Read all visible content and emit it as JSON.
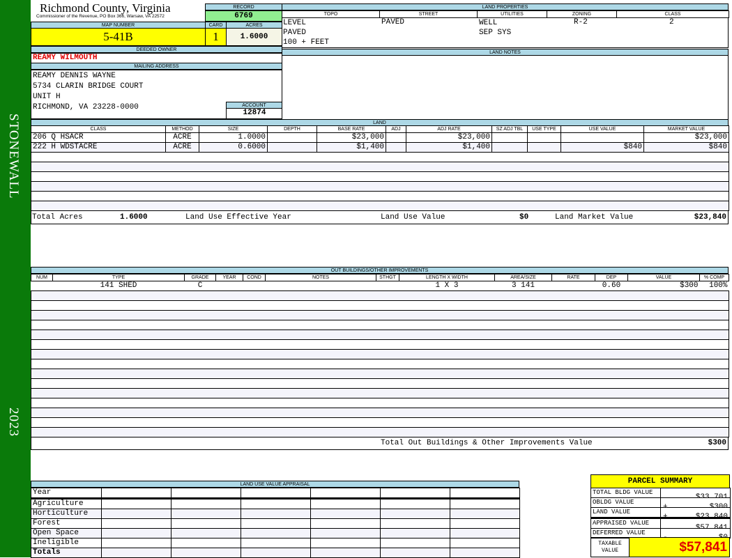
{
  "sidebar": {
    "district": "STONEWALL",
    "year": "2023",
    "color": "#0a7a0a"
  },
  "header": {
    "title": "Richmond County, Virginia",
    "subtitle": "Commissioner of the Revenue, PO Box 366, Warsaw, VA 22572"
  },
  "record": {
    "label": "RECORD",
    "value": "6769"
  },
  "map": {
    "label": "MAP NUMBER",
    "value": "5-41B"
  },
  "card": {
    "label": "CARD",
    "value": "1"
  },
  "acres": {
    "label": "ACRES",
    "value": "1.6000"
  },
  "owner": {
    "label": "DEEDED OWNER",
    "value": "REAMY WILMOUTH"
  },
  "mailing": {
    "label": "MAILING ADDRESS",
    "lines": [
      "REAMY DENNIS WAYNE",
      "5734 CLARIN BRIDGE COURT",
      "UNIT H",
      "RICHMOND, VA 23228-0000"
    ]
  },
  "account": {
    "label": "ACCOUNT",
    "value": "12874"
  },
  "land_properties": {
    "label": "LAND PROPERTIES",
    "columns": [
      "TOPO",
      "STREET",
      "UTILITIES",
      "ZONING",
      "CLASS"
    ],
    "topo": [
      "LEVEL",
      "PAVED",
      "100 + FEET"
    ],
    "street": "PAVED",
    "utilities": [
      "WELL",
      "SEP SYS"
    ],
    "zoning": "R-2",
    "class": "2"
  },
  "land_notes": {
    "label": "LAND NOTES"
  },
  "land": {
    "label": "LAND",
    "columns": [
      "CLASS",
      "METHOD",
      "SIZE",
      "DEPTH",
      "BASE RATE",
      "ADJ",
      "ADJ RATE",
      "SZ ADJ TBL",
      "USE TYPE",
      "USE VALUE",
      "MARKET VALUE"
    ],
    "rows": [
      [
        "206 Q HSACR",
        "ACRE",
        "1.0000",
        "",
        "$23,000",
        "",
        "$23,000",
        "",
        "",
        "",
        "$23,000"
      ],
      [
        "222 H WDSTACRE",
        "ACRE",
        "0.6000",
        "",
        "$1,400",
        "",
        "$1,400",
        "",
        "",
        "$840",
        "$840"
      ]
    ],
    "totals": {
      "acres_label": "Total Acres",
      "acres": "1.6000",
      "eff_year_label": "Land Use Effective Year",
      "eff_year": "",
      "use_value_label": "Land Use Value",
      "use_value": "$0",
      "market_label": "Land Market Value",
      "market": "$23,840"
    }
  },
  "outbuildings": {
    "label": "OUT BUILDINGS/OTHER IMPROVEMENTS",
    "columns": [
      "NUM",
      "TYPE",
      "GRADE",
      "YEAR",
      "COND",
      "NOTES",
      "STHGT",
      "LENGTH X WIDTH",
      "AREA/SIZE",
      "RATE",
      "DEP",
      "VALUE",
      "% COMP"
    ],
    "rows": [
      [
        "",
        "141 SHED",
        "C",
        "",
        "",
        "",
        "",
        "1 X 3",
        "3 141",
        "",
        "0.60",
        "$300",
        "100%"
      ]
    ],
    "total_label": "Total Out Buildings & Other Improvements Value",
    "total": "$300"
  },
  "land_use_appraisal": {
    "label": "LAND USE VALUE APPRAISAL",
    "year_label": "Year",
    "rows": [
      "Agriculture",
      "Horticulture",
      "Forest",
      "Open Space",
      "Ineligible"
    ],
    "totals_label": "Totals"
  },
  "parcel_summary": {
    "title": "PARCEL SUMMARY",
    "rows": [
      {
        "label": "TOTAL BLDG VALUE",
        "op": "",
        "value": "$33,701"
      },
      {
        "label": "OBLDG VALUE",
        "op": "+",
        "value": "$300"
      },
      {
        "label": "LAND VALUE",
        "op": "+",
        "value": "$23,840"
      },
      {
        "label": "APPRAISED VALUE",
        "op": "",
        "value": "$57,841"
      },
      {
        "label": "DEFERRED VALUE",
        "op": "-",
        "value": "$0"
      }
    ],
    "taxable_label": "TAXABLE VALUE",
    "taxable": "$57,841"
  }
}
